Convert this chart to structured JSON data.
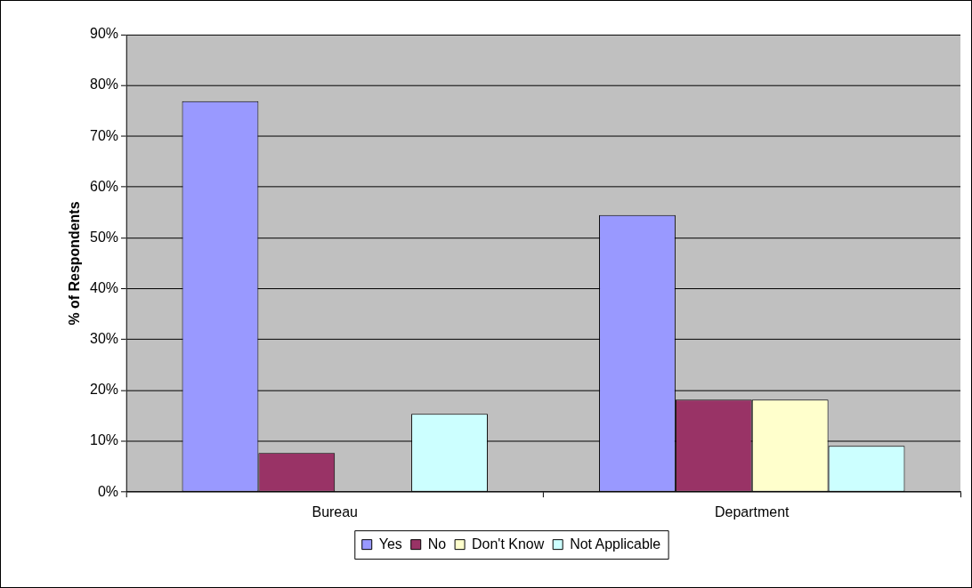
{
  "chart_data": {
    "type": "bar",
    "ylabel": "% of Respondents",
    "categories": [
      "Bureau",
      "Department"
    ],
    "series": [
      {
        "name": "Yes",
        "color": "#9999ff",
        "values": [
          76.9,
          54.5
        ]
      },
      {
        "name": "No",
        "color": "#993366",
        "values": [
          7.7,
          18.2
        ]
      },
      {
        "name": "Don't Know",
        "color": "#ffffcc",
        "values": [
          0,
          18.2
        ]
      },
      {
        "name": "Not Applicable",
        "color": "#ccffff",
        "values": [
          15.4,
          9.1
        ]
      }
    ],
    "ylim": [
      0,
      90
    ],
    "yticks": [
      {
        "value": 0,
        "label": "0%"
      },
      {
        "value": 10,
        "label": "10%"
      },
      {
        "value": 20,
        "label": "20%"
      },
      {
        "value": 30,
        "label": "30%"
      },
      {
        "value": 40,
        "label": "40%"
      },
      {
        "value": 50,
        "label": "50%"
      },
      {
        "value": 60,
        "label": "60%"
      },
      {
        "value": 70,
        "label": "70%"
      },
      {
        "value": 80,
        "label": "80%"
      },
      {
        "value": 90,
        "label": "90%"
      }
    ],
    "grid": "y",
    "legend": "bottom"
  }
}
